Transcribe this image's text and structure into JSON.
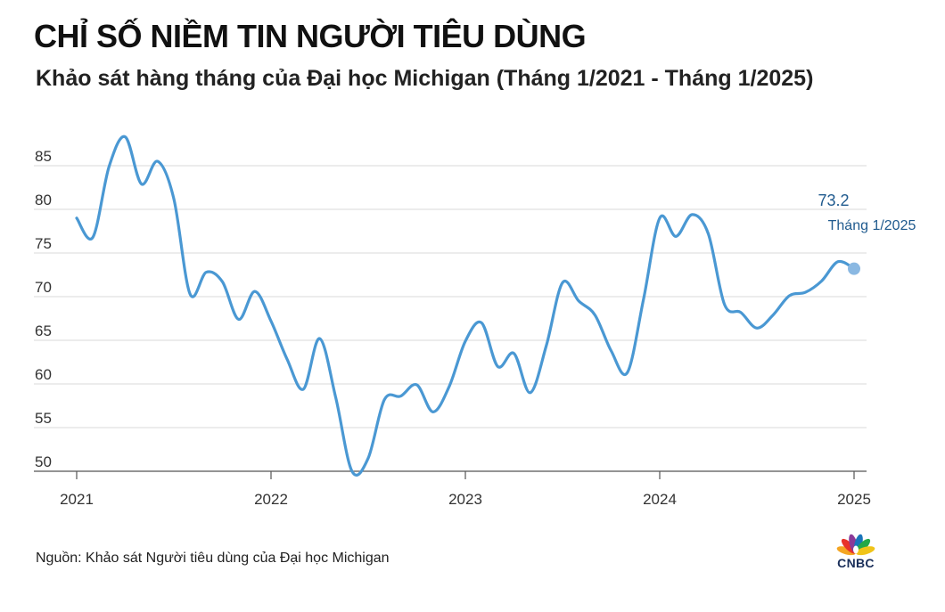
{
  "header": {
    "title": "CHỈ SỐ NIỀM TIN NGƯỜI TIÊU DÙNG",
    "subtitle": "Khảo sát hàng tháng của Đại học Michigan (Tháng 1/2021 - Tháng 1/2025)"
  },
  "source": "Nguồn: Khảo sát Người tiêu dùng của Đại học Michigan",
  "logo_text": "CNBC",
  "colors": {
    "line": "#4a98d3",
    "end_marker": "#8ab8e2",
    "annotation": "#1f5a8e",
    "grid": "#d9d9d9",
    "axis_text": "#333333"
  },
  "chart_data": {
    "type": "line",
    "title": "CHỈ SỐ NIỀM TIN NGƯỜI TIÊU DÙNG",
    "subtitle": "Khảo sát hàng tháng của Đại học Michigan (Tháng 1/2021 - Tháng 1/2025)",
    "xlabel": "",
    "ylabel": "",
    "x": [
      "2021-01",
      "2021-02",
      "2021-03",
      "2021-04",
      "2021-05",
      "2021-06",
      "2021-07",
      "2021-08",
      "2021-09",
      "2021-10",
      "2021-11",
      "2021-12",
      "2022-01",
      "2022-02",
      "2022-03",
      "2022-04",
      "2022-05",
      "2022-06",
      "2022-07",
      "2022-08",
      "2022-09",
      "2022-10",
      "2022-11",
      "2022-12",
      "2023-01",
      "2023-02",
      "2023-03",
      "2023-04",
      "2023-05",
      "2023-06",
      "2023-07",
      "2023-08",
      "2023-09",
      "2023-10",
      "2023-11",
      "2023-12",
      "2024-01",
      "2024-02",
      "2024-03",
      "2024-04",
      "2024-05",
      "2024-06",
      "2024-07",
      "2024-08",
      "2024-09",
      "2024-10",
      "2024-11",
      "2024-12",
      "2025-01"
    ],
    "series": [
      {
        "values": [
          79.0,
          76.8,
          84.9,
          88.3,
          82.9,
          85.5,
          81.2,
          70.3,
          72.8,
          71.7,
          67.4,
          70.6,
          67.2,
          62.8,
          59.4,
          65.2,
          58.4,
          50.0,
          51.5,
          58.2,
          58.6,
          59.9,
          56.8,
          59.7,
          64.9,
          67.0,
          62.0,
          63.5,
          59.0,
          64.4,
          71.6,
          69.5,
          67.9,
          63.8,
          61.3,
          69.7,
          79.0,
          76.9,
          79.4,
          77.2,
          69.1,
          68.2,
          66.4,
          67.9,
          70.1,
          70.5,
          71.8,
          74.0,
          73.2
        ]
      }
    ],
    "x_ticks": [
      "2021",
      "2022",
      "2023",
      "2024",
      "2025"
    ],
    "y_ticks": [
      50,
      55,
      60,
      65,
      70,
      75,
      80,
      85
    ],
    "ylim": [
      49,
      90
    ],
    "grid": true,
    "annotation": {
      "value_label": "73.2",
      "date_label": "Tháng 1/2025"
    }
  }
}
